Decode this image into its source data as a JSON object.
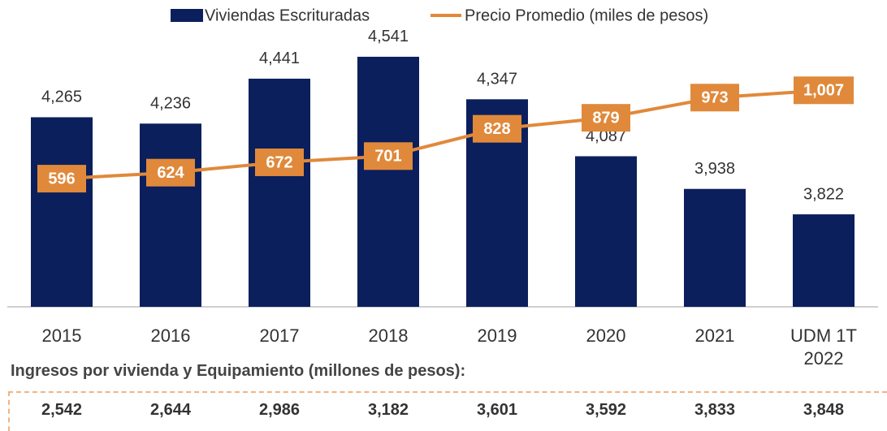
{
  "chart_data": {
    "type": "bar",
    "categories": [
      "2015",
      "2016",
      "2017",
      "2018",
      "2019",
      "2020",
      "2021",
      "UDM 1T 2022"
    ],
    "series": [
      {
        "name": "Viviendas Escrituradas",
        "type": "bar",
        "color": "#0b1f5c",
        "values": [
          4265,
          4236,
          4441,
          4541,
          4347,
          4087,
          3938,
          3822
        ],
        "value_labels": [
          "4,265",
          "4,236",
          "4,441",
          "4,541",
          "4,347",
          "4,087",
          "3,938",
          "3,822"
        ]
      },
      {
        "name": "Precio Promedio (miles de pesos)",
        "type": "line",
        "axis": "y2",
        "color": "#e0893b",
        "values": [
          596,
          624,
          672,
          701,
          828,
          879,
          973,
          1007
        ],
        "value_labels": [
          "596",
          "624",
          "672",
          "701",
          "828",
          "879",
          "973",
          "1,007"
        ]
      }
    ],
    "ylim": [
      3400,
      4700
    ],
    "y2lim": [
      0,
      1325
    ],
    "legend": "top"
  },
  "table": {
    "title": "Ingresos por vivienda y Equipamiento (millones de pesos):",
    "cells": [
      "2,542",
      "2,644",
      "2,986",
      "3,182",
      "3,601",
      "3,592",
      "3,833",
      "3,848"
    ]
  }
}
